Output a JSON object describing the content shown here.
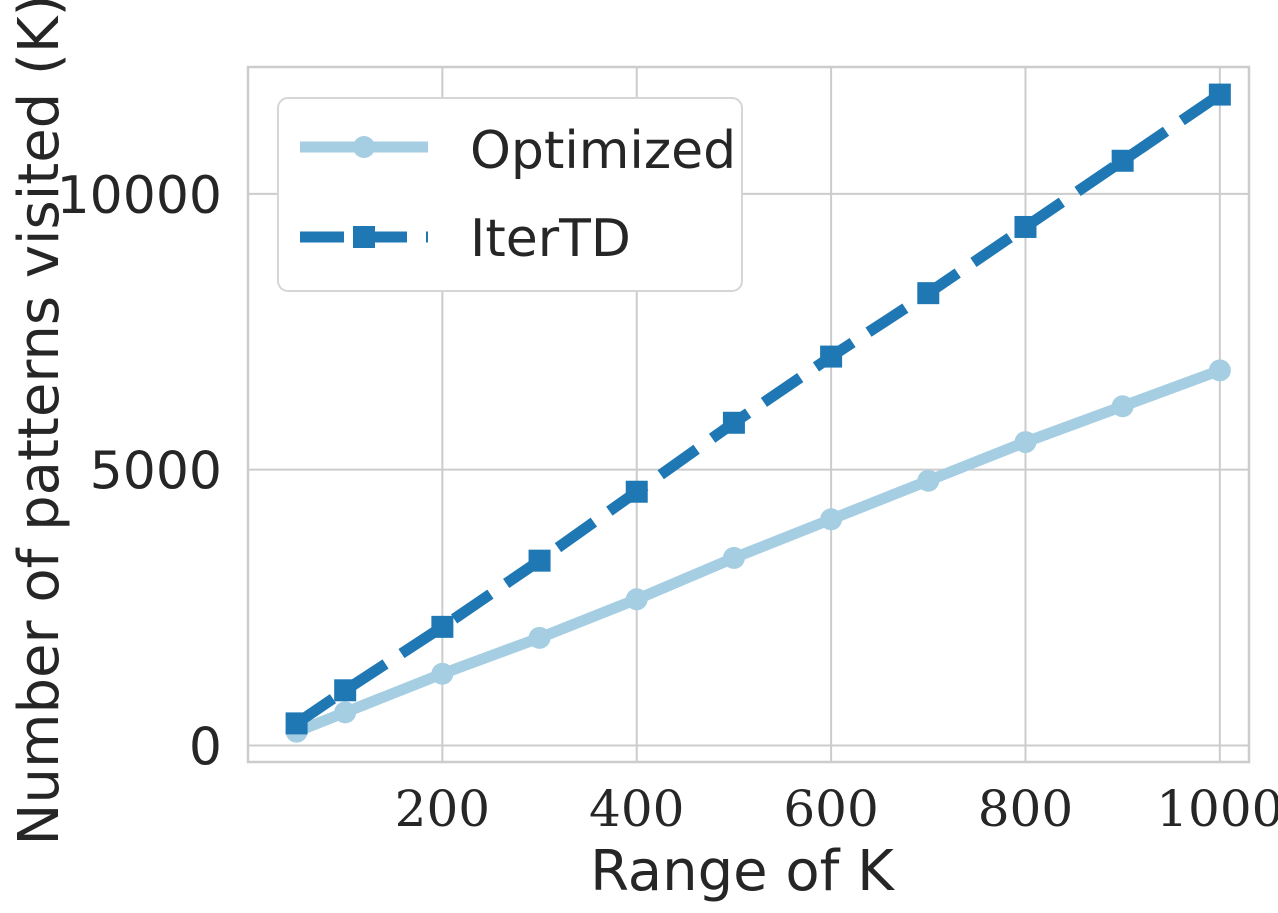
{
  "chart_data": {
    "type": "line",
    "title": "",
    "xlabel": "Range of K",
    "ylabel": "Number of patterns visited (K)",
    "xlim": [
      0,
      1030
    ],
    "ylim": [
      -300,
      12300
    ],
    "xticks": [
      200,
      400,
      600,
      800,
      1000
    ],
    "xtick_labels": [
      "200",
      "400",
      "600",
      "800",
      "1000"
    ],
    "yticks": [
      0,
      5000,
      10000
    ],
    "ytick_labels": [
      "0",
      "5000",
      "10000"
    ],
    "grid": true,
    "legend_position": "top-left",
    "series": [
      {
        "name": "Optimized",
        "color": "#a6cee3",
        "line_style": "solid",
        "marker": "circle",
        "x": [
          50,
          100,
          200,
          300,
          400,
          500,
          600,
          700,
          800,
          900,
          1000
        ],
        "y": [
          250,
          600,
          1300,
          1950,
          2650,
          3400,
          4100,
          4800,
          5500,
          6150,
          6800
        ]
      },
      {
        "name": "IterTD",
        "color": "#1f78b4",
        "line_style": "dashed",
        "marker": "square",
        "x": [
          50,
          100,
          200,
          300,
          400,
          500,
          600,
          700,
          800,
          900,
          1000
        ],
        "y": [
          400,
          1000,
          2150,
          3350,
          4600,
          5850,
          7050,
          8200,
          9400,
          10600,
          11800
        ]
      }
    ]
  }
}
